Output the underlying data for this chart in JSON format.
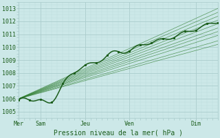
{
  "xlabel": "Pression niveau de la mer( hPa )",
  "ylim": [
    1004.5,
    1013.5
  ],
  "xlim": [
    0,
    108
  ],
  "yticks": [
    1005,
    1006,
    1007,
    1008,
    1009,
    1010,
    1011,
    1012,
    1013
  ],
  "xtick_positions": [
    0,
    12,
    36,
    60,
    96
  ],
  "xtick_labels": [
    "Mer",
    "Sam",
    "Jeu",
    "Ven",
    "Dim"
  ],
  "bg_color": "#cce8e8",
  "grid_major_color": "#aacccc",
  "grid_minor_color": "#bbdddd",
  "line_dark": "#1a5c1a",
  "line_mid": "#2e7d2e",
  "line_light": "#4a9a4a",
  "n": 109
}
